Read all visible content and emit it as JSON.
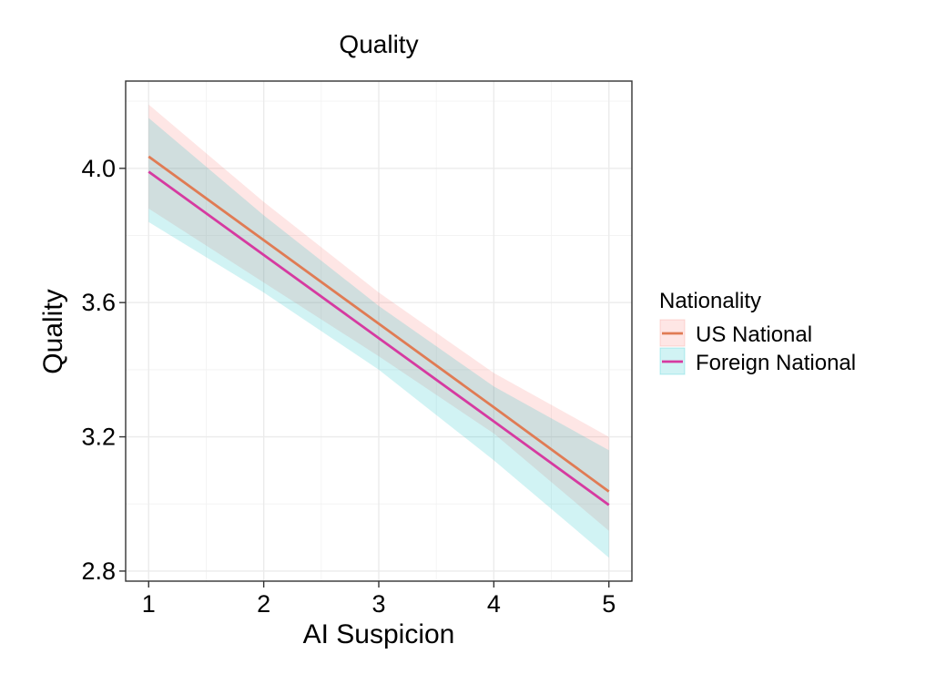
{
  "chart_data": {
    "type": "line",
    "title": "Quality",
    "xlabel": "AI Suspicion",
    "ylabel": "Quality",
    "xlim": [
      0.8,
      5.2
    ],
    "ylim": [
      2.77,
      4.26
    ],
    "x_ticks": [
      1,
      2,
      3,
      4,
      5
    ],
    "x_tick_labels": [
      "1",
      "2",
      "3",
      "4",
      "5"
    ],
    "y_ticks": [
      2.8,
      3.2,
      3.6,
      4.0
    ],
    "y_tick_labels": [
      "2.8",
      "3.2",
      "3.6",
      "4.0"
    ],
    "grid": true,
    "legend": {
      "title": "Nationality",
      "position": "right"
    },
    "series": [
      {
        "name": "US National",
        "color": "#e07b54",
        "ribbon_color": "#f8766d",
        "x": [
          1,
          2,
          3,
          4,
          5
        ],
        "y": [
          4.035,
          3.786,
          3.537,
          3.288,
          3.037
        ],
        "lower": [
          3.88,
          3.66,
          3.44,
          3.21,
          2.92
        ],
        "upper": [
          4.19,
          3.9,
          3.63,
          3.39,
          3.2
        ]
      },
      {
        "name": "Foreign National",
        "color": "#d63aa0",
        "ribbon_color": "#00bfc4",
        "x": [
          1,
          2,
          3,
          4,
          5
        ],
        "y": [
          3.99,
          3.742,
          3.494,
          3.246,
          2.997
        ],
        "lower": [
          3.84,
          3.63,
          3.4,
          3.13,
          2.84
        ],
        "upper": [
          4.15,
          3.86,
          3.59,
          3.35,
          3.16
        ]
      }
    ]
  }
}
